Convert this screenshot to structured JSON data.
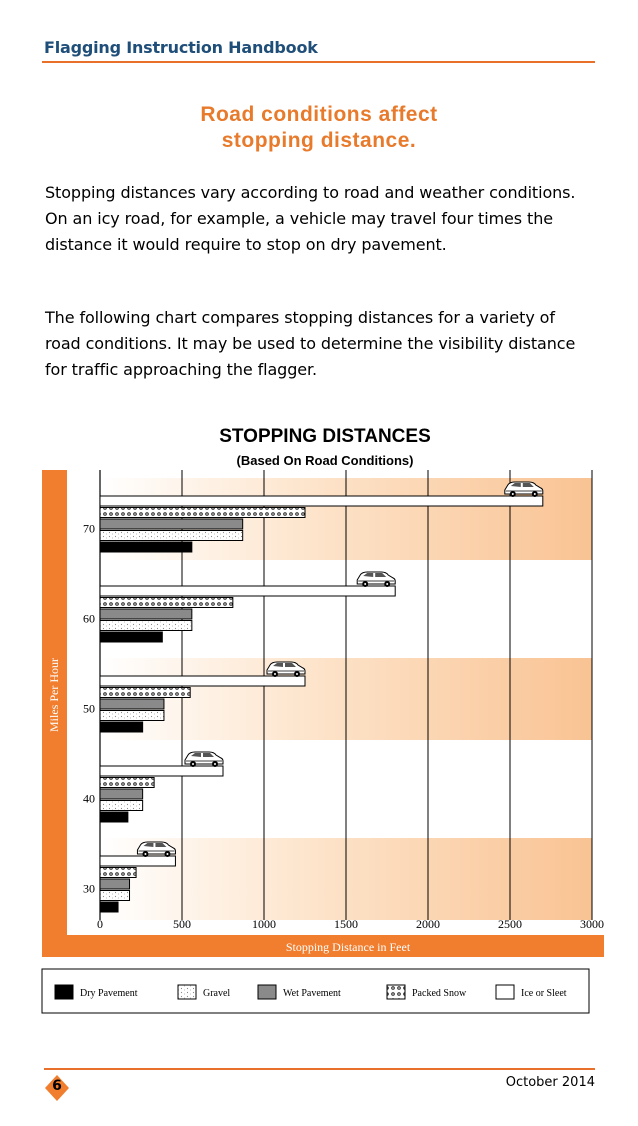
{
  "header": {
    "title": "Flagging Instruction Handbook"
  },
  "heading": {
    "line1": "Road conditions affect",
    "line2": "stopping distance."
  },
  "paragraphs": [
    "Stopping distances vary according to road and weather conditions. On an icy road, for example, a vehicle may travel four times the distance it would require to stop on dry pavement.",
    "The following chart compares stopping distances for a variety of road conditions. It may be used to determine the visibility distance for traffic approaching the flagger."
  ],
  "chart_data": {
    "type": "bar",
    "orientation": "horizontal",
    "title": "STOPPING DISTANCES",
    "subtitle": "(Based On Road Conditions)",
    "xlabel": "Stopping Distance in Feet",
    "ylabel": "Miles Per Hour",
    "xlim": [
      0,
      3000
    ],
    "xticks": [
      0,
      500,
      1000,
      1500,
      2000,
      2500,
      3000
    ],
    "categories": [
      "30",
      "40",
      "50",
      "60",
      "70"
    ],
    "legend_position": "bottom",
    "grid": true,
    "series": [
      {
        "name": "Dry Pavement",
        "key": "dry",
        "values": [
          110,
          170,
          260,
          380,
          560
        ]
      },
      {
        "name": "Gravel",
        "key": "gravel",
        "values": [
          180,
          260,
          390,
          560,
          870
        ]
      },
      {
        "name": "Wet Pavement",
        "key": "wet",
        "values": [
          180,
          260,
          390,
          560,
          870
        ]
      },
      {
        "name": "Packed Snow",
        "key": "snow",
        "values": [
          220,
          330,
          550,
          810,
          1250
        ]
      },
      {
        "name": "Ice or Sleet",
        "key": "ice",
        "values": [
          460,
          750,
          1250,
          1800,
          2700
        ]
      }
    ],
    "colors": {
      "frame": "#f07e2e",
      "band": "#fbd4b0",
      "dry": "#000000",
      "wet": "#8a8a8a"
    }
  },
  "footer": {
    "page_number": "6",
    "date": "October 2014"
  }
}
